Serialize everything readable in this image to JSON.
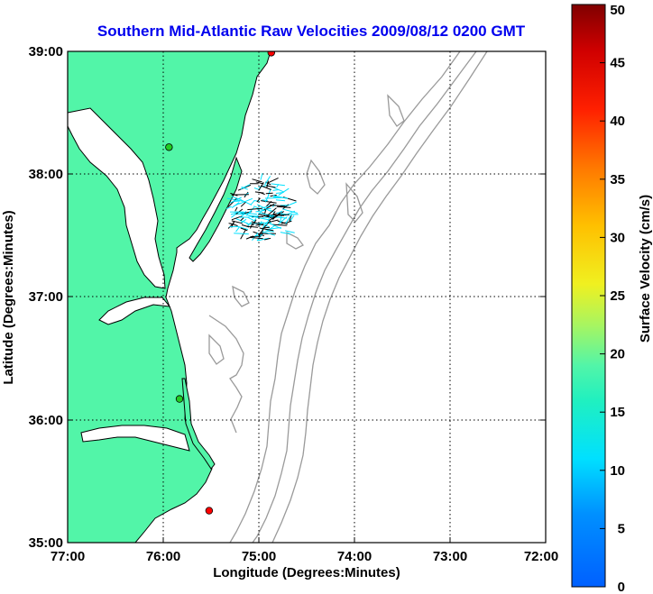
{
  "title": "Southern Mid-Atlantic Raw Velocities 2009/08/12 0200 GMT",
  "xlabel": "Longitude (Degrees:Minutes)",
  "ylabel": "Latitude (Degrees:Minutes)",
  "x_ticks": [
    "77:00",
    "76:00",
    "75:00",
    "74:00",
    "73:00",
    "72:00"
  ],
  "y_ticks": [
    "39:00",
    "38:00",
    "37:00",
    "36:00",
    "35:00"
  ],
  "colorbar": {
    "label": "Surface Velocity (cm/s)",
    "ticks": [
      "50",
      "45",
      "40",
      "35",
      "30",
      "25",
      "20",
      "15",
      "10",
      "5",
      "0"
    ],
    "min": 0,
    "max": 50,
    "colormap": "jet"
  },
  "colors": {
    "title": "#0000ee",
    "land": "#52f5a8",
    "water": "#ffffff",
    "bathymetry": "#9a9a9a",
    "vectors": "#000000",
    "vector_fill": "#00e0ff",
    "station_green": "#22cc22",
    "station_red": "#ff0000"
  },
  "map": {
    "lon_range": [
      -77,
      -72
    ],
    "lat_range": [
      35,
      39
    ],
    "grid": "dotted",
    "stations": [
      {
        "lon": -74.87,
        "lat": 38.99,
        "status": "red"
      },
      {
        "lon": -75.94,
        "lat": 38.22,
        "status": "green"
      },
      {
        "lon": -75.83,
        "lat": 36.17,
        "status": "green"
      },
      {
        "lon": -75.52,
        "lat": 35.26,
        "status": "red"
      }
    ],
    "vector_field": {
      "lon_range": [
        -75.3,
        -74.65
      ],
      "lat_range": [
        37.45,
        37.95
      ]
    }
  }
}
